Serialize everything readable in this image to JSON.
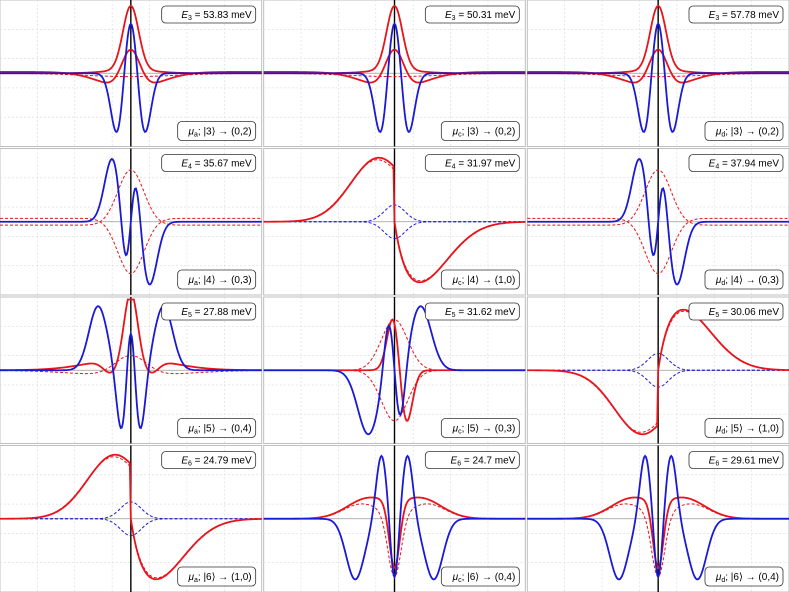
{
  "chart_data": [
    {
      "type": "line",
      "energy": "E_3 = 53.83 meV",
      "state": "μ_a; |3⟩ → (0,2)",
      "shape": "sym-center",
      "red_amp": 0.98,
      "blue_amp": 0.95,
      "center": 0.5,
      "grid": true
    },
    {
      "type": "line",
      "energy": "E_3 = 50.31 meV",
      "state": "μ_c; |3⟩ → (0,2)",
      "shape": "sym-center",
      "red_amp": 0.98,
      "blue_amp": 0.95,
      "center": 0.5,
      "grid": true
    },
    {
      "type": "line",
      "energy": "E_3 = 57.78 meV",
      "state": "μ_d; |3⟩ → (0,2)",
      "shape": "sym-center",
      "red_amp": 0.95,
      "blue_amp": 0.95,
      "center": 0.5,
      "grid": true
    },
    {
      "type": "line",
      "energy": "E_4 = 35.67 meV",
      "state": "μ_a; |4⟩ → (0,3)",
      "shape": "anti-blue",
      "red_amp": 0.9,
      "blue_amp": 1.0,
      "center": 0.5,
      "grid": true
    },
    {
      "type": "line",
      "energy": "E_4 = 31.97 meV",
      "state": "μ_c; |4⟩ → (1,0)",
      "shape": "wide-red-pos",
      "red_amp": 0.92,
      "blue_amp": 0.28,
      "center": 0.5,
      "grid": true
    },
    {
      "type": "line",
      "energy": "E_4 = 37.94 meV",
      "state": "μ_d; |4⟩ → (0,3)",
      "shape": "anti-blue",
      "red_amp": 0.9,
      "blue_amp": 1.0,
      "center": 0.5,
      "grid": true
    },
    {
      "type": "line",
      "energy": "E_5 = 27.88 meV",
      "state": "μ_a; |5⟩ → (0,4)",
      "shape": "sym-4",
      "red_amp": 1.0,
      "blue_amp": 0.98,
      "center": 0.5,
      "grid": true
    },
    {
      "type": "line",
      "energy": "E_5 = 31.62 meV",
      "state": "μ_c; |5⟩ → (0,3)",
      "shape": "anti-blue-wide",
      "red_amp": 0.95,
      "blue_amp": 1.0,
      "center": 0.5,
      "grid": true
    },
    {
      "type": "line",
      "energy": "E_5 = 30.06 meV",
      "state": "μ_d; |5⟩ → (1,0)",
      "shape": "wide-red-neg",
      "red_amp": 0.92,
      "blue_amp": 0.28,
      "center": 0.5,
      "grid": true
    },
    {
      "type": "line",
      "energy": "E_6 = 24.79 meV",
      "state": "μ_a; |6⟩ → (1,0)",
      "shape": "wide-red-pos",
      "red_amp": 0.92,
      "blue_amp": 0.28,
      "center": 0.5,
      "grid": true
    },
    {
      "type": "line",
      "energy": "E_6 = 24.7 meV",
      "state": "μ_c; |6⟩ → (0,4)",
      "shape": "sym-4b",
      "red_amp": 0.9,
      "blue_amp": 1.0,
      "center": 0.5,
      "grid": true
    },
    {
      "type": "line",
      "energy": "E_6 = 29.61 meV",
      "state": "μ_d; |6⟩ → (0,4)",
      "shape": "sym-4b",
      "red_amp": 0.9,
      "blue_amp": 1.0,
      "center": 0.5,
      "grid": true
    }
  ],
  "colors": {
    "red": "#e8141b",
    "blue": "#1a1ad6",
    "grid": "#d9d9d9",
    "zero": "#999999",
    "axis": "#000000",
    "frame": "#bfbfbf"
  }
}
